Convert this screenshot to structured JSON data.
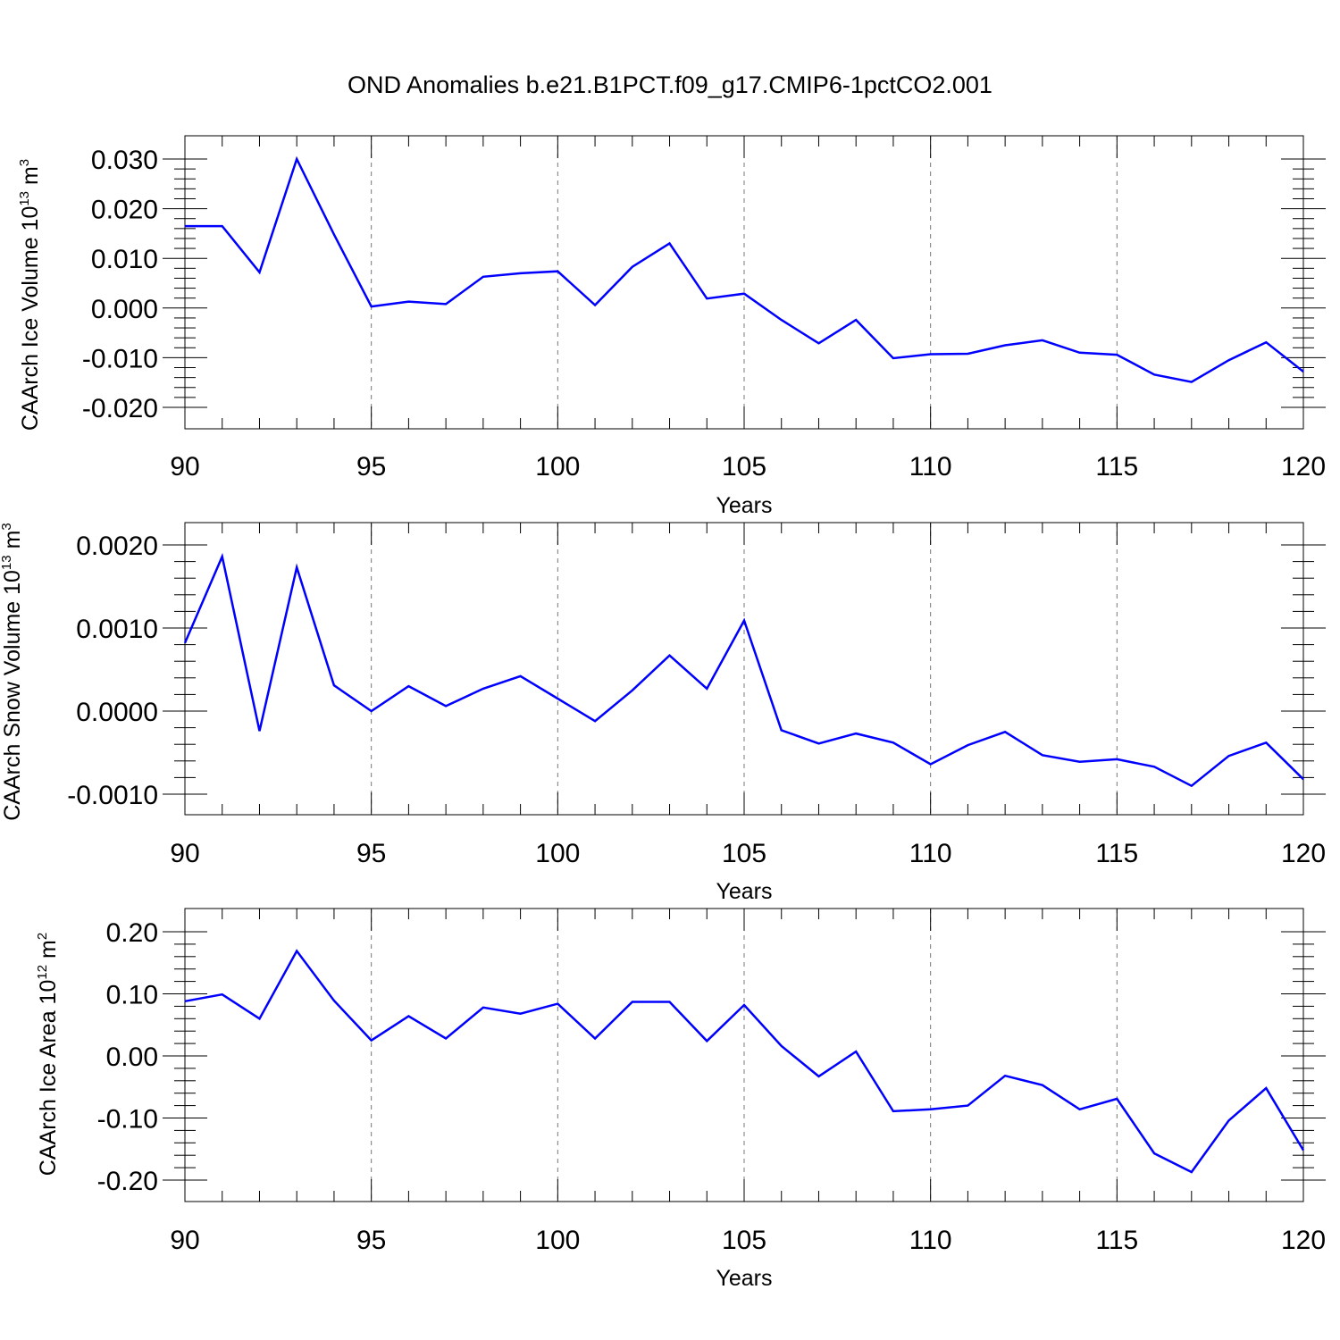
{
  "title": "OND Anomalies b.e21.B1PCT.f09_g17.CMIP6-1pctCO2.001",
  "chart_data": [
    {
      "type": "line",
      "ylabel_main": "CAArch Ice Volume 10",
      "ylabel_exp": "13",
      "ylabel_unit": "m",
      "ylabel_unit_exp": "3",
      "xlabel": "Years",
      "xlim": [
        90,
        120
      ],
      "ylim": [
        -0.02,
        0.03
      ],
      "yticks": [
        "0.030",
        "0.020",
        "0.010",
        "0.000",
        "-0.010",
        "-0.020"
      ],
      "ytick_values": [
        0.03,
        0.02,
        0.01,
        0.0,
        -0.01,
        -0.02
      ],
      "xticks": [
        "90",
        "95",
        "100",
        "105",
        "110",
        "115",
        "120"
      ],
      "line_color": "#0000ff",
      "x": [
        90,
        91,
        92,
        93,
        94,
        95,
        96,
        97,
        98,
        99,
        100,
        101,
        102,
        103,
        104,
        105,
        106,
        107,
        108,
        109,
        110,
        111,
        112,
        113,
        114,
        115,
        116,
        117,
        118,
        119,
        120
      ],
      "y": [
        0.0165,
        0.0165,
        0.0072,
        0.03,
        0.0148,
        0.0003,
        0.0013,
        0.0008,
        0.0063,
        0.007,
        0.0074,
        0.0006,
        0.0083,
        0.013,
        0.0019,
        0.0029,
        -0.0024,
        -0.0071,
        -0.0024,
        -0.0101,
        -0.0093,
        -0.0092,
        -0.0075,
        -0.0065,
        -0.009,
        -0.0094,
        -0.0134,
        -0.0149,
        -0.0105,
        -0.0069,
        -0.0128
      ]
    },
    {
      "type": "line",
      "ylabel_main": "CAArch Snow Volume 10",
      "ylabel_exp": "13",
      "ylabel_unit": "m",
      "ylabel_unit_exp": "3",
      "xlabel": "Years",
      "xlim": [
        90,
        120
      ],
      "ylim": [
        -0.001,
        0.002
      ],
      "yticks": [
        "0.0020",
        "0.0010",
        "0.0000",
        "-0.0010"
      ],
      "ytick_values": [
        0.002,
        0.001,
        0.0,
        -0.001
      ],
      "xticks": [
        "90",
        "95",
        "100",
        "105",
        "110",
        "115",
        "120"
      ],
      "line_color": "#0000ff",
      "x": [
        90,
        91,
        92,
        93,
        94,
        95,
        96,
        97,
        98,
        99,
        100,
        101,
        102,
        103,
        104,
        105,
        106,
        107,
        108,
        109,
        110,
        111,
        112,
        113,
        114,
        115,
        116,
        117,
        118,
        119,
        120
      ],
      "y": [
        0.00082,
        0.00186,
        -0.00024,
        0.00173,
        0.00031,
        0.0,
        0.0003,
        6e-05,
        0.00027,
        0.00042,
        0.00015,
        -0.00012,
        0.00025,
        0.00067,
        0.00027,
        0.00109,
        -0.00023,
        -0.00039,
        -0.00027,
        -0.00038,
        -0.00064,
        -0.00041,
        -0.00025,
        -0.00053,
        -0.00061,
        -0.00058,
        -0.00067,
        -0.0009,
        -0.00054,
        -0.00038,
        -0.00082
      ]
    },
    {
      "type": "line",
      "ylabel_main": "CAArch Ice Area 10",
      "ylabel_exp": "12",
      "ylabel_unit": "m",
      "ylabel_unit_exp": "2",
      "xlabel": "Years",
      "xlim": [
        90,
        120
      ],
      "ylim": [
        -0.2,
        0.2
      ],
      "yticks": [
        "0.20",
        "0.10",
        "0.00",
        "-0.10",
        "-0.20"
      ],
      "ytick_values": [
        0.2,
        0.1,
        0.0,
        -0.1,
        -0.2
      ],
      "xticks": [
        "90",
        "95",
        "100",
        "105",
        "110",
        "115",
        "120"
      ],
      "line_color": "#0000ff",
      "x": [
        90,
        91,
        92,
        93,
        94,
        95,
        96,
        97,
        98,
        99,
        100,
        101,
        102,
        103,
        104,
        105,
        106,
        107,
        108,
        109,
        110,
        111,
        112,
        113,
        114,
        115,
        116,
        117,
        118,
        119,
        120
      ],
      "y": [
        0.088,
        0.099,
        0.06,
        0.169,
        0.089,
        0.025,
        0.064,
        0.028,
        0.078,
        0.068,
        0.084,
        0.028,
        0.087,
        0.087,
        0.024,
        0.082,
        0.016,
        -0.033,
        0.007,
        -0.089,
        -0.086,
        -0.08,
        -0.032,
        -0.047,
        -0.086,
        -0.069,
        -0.157,
        -0.187,
        -0.104,
        -0.052,
        -0.152
      ]
    }
  ]
}
